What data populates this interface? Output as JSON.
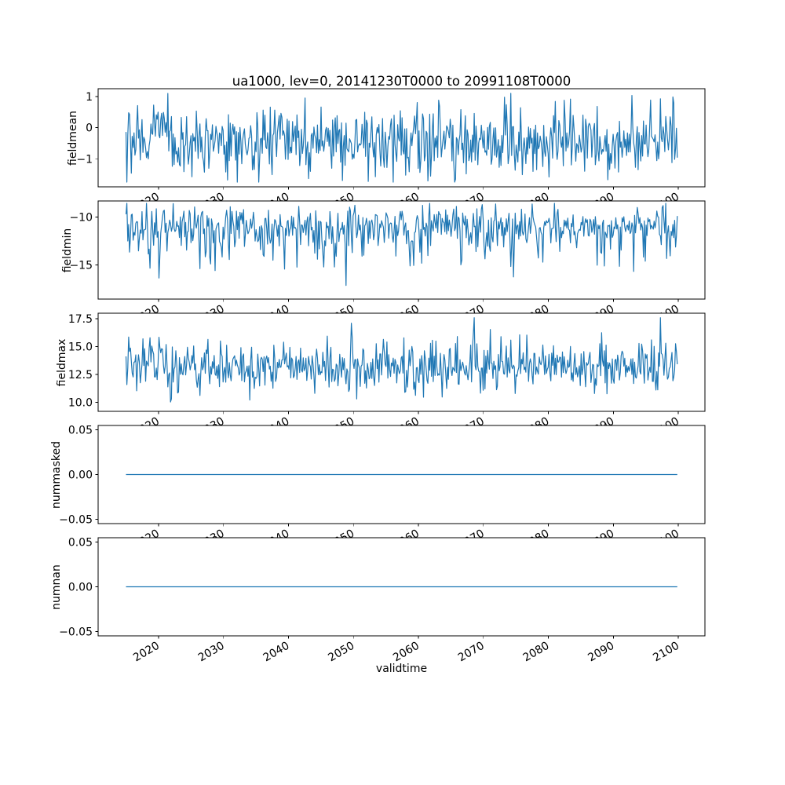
{
  "figure": {
    "title": "ua1000, lev=0, 20141230T0000 to 20991108T0000",
    "xlabel": "validtime",
    "line_color": "#1f77b4",
    "axis_color": "#000000",
    "background": "#ffffff"
  },
  "chart_data": [
    {
      "type": "line",
      "ylabel": "fieldmean",
      "x_start": 2014.99,
      "x_end": 2099.85,
      "xlim": [
        2010.7,
        2104.1
      ],
      "ylim": [
        -1.9,
        1.25
      ],
      "yticks": [
        1,
        0,
        -1
      ],
      "ytick_labels": [
        "1",
        "0",
        "−1"
      ],
      "xticks": [
        2020,
        2030,
        2040,
        2050,
        2060,
        2070,
        2080,
        2090,
        2100
      ],
      "xtick_labels": [
        "2020",
        "2030",
        "2040",
        "2050",
        "2060",
        "2070",
        "2080",
        "2090",
        "2100"
      ],
      "series": {
        "name": "fieldmean",
        "n": 620,
        "mean": -0.45,
        "std": 0.55,
        "min": -1.75,
        "max": 1.12,
        "seed": 7,
        "spike_prob": 0.025,
        "spike_scale": 1.1
      }
    },
    {
      "type": "line",
      "ylabel": "fieldmin",
      "x_start": 2014.99,
      "x_end": 2099.85,
      "xlim": [
        2010.7,
        2104.1
      ],
      "ylim": [
        -18.6,
        -8.3
      ],
      "yticks": [
        -10,
        -15
      ],
      "ytick_labels": [
        "−10",
        "−15"
      ],
      "xticks": [
        2020,
        2030,
        2040,
        2050,
        2060,
        2070,
        2080,
        2090,
        2100
      ],
      "xtick_labels": [
        "2020",
        "2030",
        "2040",
        "2050",
        "2060",
        "2070",
        "2080",
        "2090",
        "2100"
      ],
      "series": {
        "name": "fieldmin",
        "n": 620,
        "mean": -10.9,
        "std": 1.0,
        "min": -18.3,
        "max": -8.55,
        "seed": 11,
        "spike_prob": 0.15,
        "spike_scale": -4.0
      }
    },
    {
      "type": "line",
      "ylabel": "fieldmax",
      "x_start": 2014.99,
      "x_end": 2099.85,
      "xlim": [
        2010.7,
        2104.1
      ],
      "ylim": [
        9.2,
        18.0
      ],
      "yticks": [
        17.5,
        15.0,
        12.5,
        10.0
      ],
      "ytick_labels": [
        "17.5",
        "15.0",
        "12.5",
        "10.0"
      ],
      "xticks": [
        2020,
        2030,
        2040,
        2050,
        2060,
        2070,
        2080,
        2090,
        2100
      ],
      "xtick_labels": [
        "2020",
        "2030",
        "2040",
        "2050",
        "2060",
        "2070",
        "2080",
        "2090",
        "2100"
      ],
      "series": {
        "name": "fieldmax",
        "n": 620,
        "mean": 13.1,
        "std": 1.05,
        "min": 9.6,
        "max": 17.6,
        "seed": 23,
        "spike_prob": 0.08,
        "spike_scale": 2.6
      }
    },
    {
      "type": "line",
      "ylabel": "nummasked",
      "x_start": 2014.99,
      "x_end": 2099.85,
      "xlim": [
        2010.7,
        2104.1
      ],
      "ylim": [
        -0.055,
        0.055
      ],
      "yticks": [
        0.05,
        0.0,
        -0.05
      ],
      "ytick_labels": [
        "0.05",
        "0.00",
        "−0.05"
      ],
      "xticks": [
        2020,
        2030,
        2040,
        2050,
        2060,
        2070,
        2080,
        2090,
        2100
      ],
      "xtick_labels": [
        "2020",
        "2030",
        "2040",
        "2050",
        "2060",
        "2070",
        "2080",
        "2090",
        "2100"
      ],
      "series": {
        "name": "nummasked",
        "n": 2,
        "constant": 0,
        "seed": 1
      }
    },
    {
      "type": "line",
      "ylabel": "numnan",
      "x_start": 2014.99,
      "x_end": 2099.85,
      "xlim": [
        2010.7,
        2104.1
      ],
      "ylim": [
        -0.055,
        0.055
      ],
      "yticks": [
        0.05,
        0.0,
        -0.05
      ],
      "ytick_labels": [
        "0.05",
        "0.00",
        "−0.05"
      ],
      "xticks": [
        2020,
        2030,
        2040,
        2050,
        2060,
        2070,
        2080,
        2090,
        2100
      ],
      "xtick_labels": [
        "2020",
        "2030",
        "2040",
        "2050",
        "2060",
        "2070",
        "2080",
        "2090",
        "2100"
      ],
      "series": {
        "name": "numnan",
        "n": 2,
        "constant": 0,
        "seed": 2
      }
    }
  ]
}
